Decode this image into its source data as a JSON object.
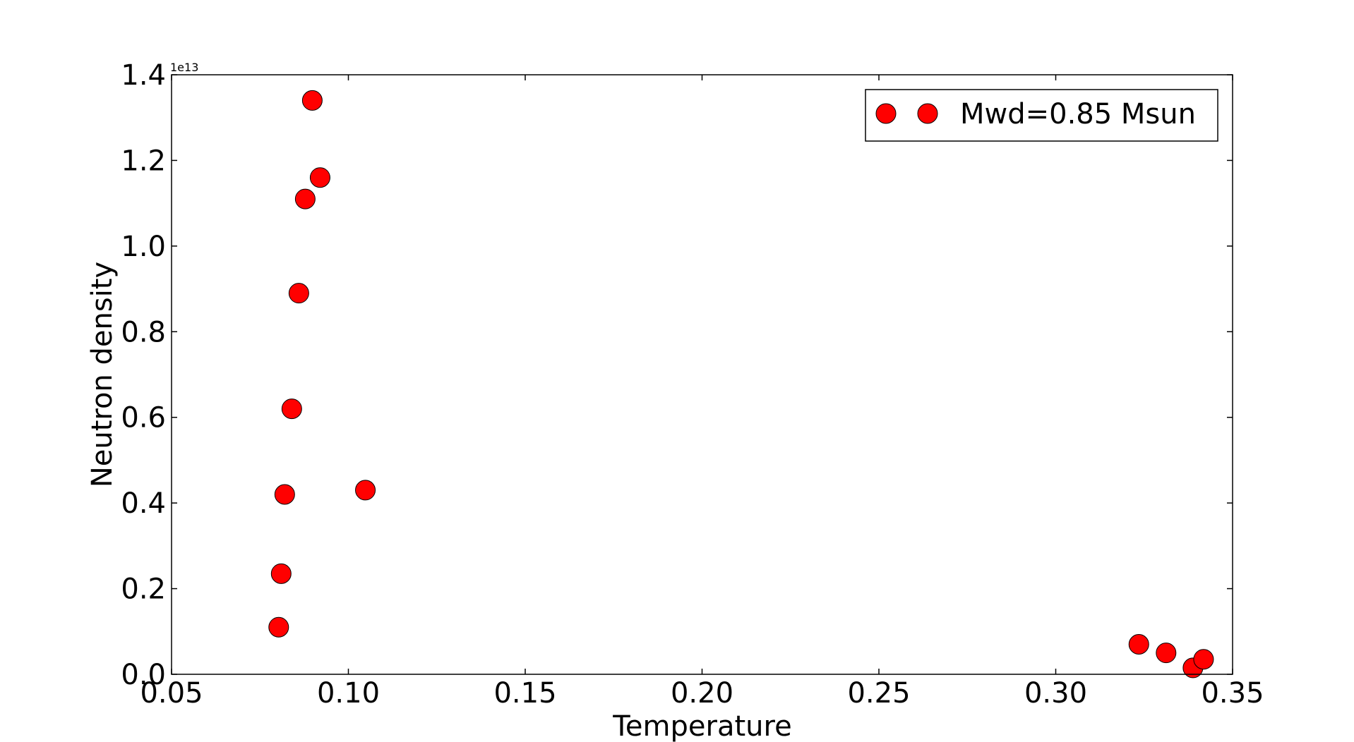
{
  "chart_data": {
    "type": "scatter",
    "xlabel": "Temperature",
    "ylabel": "Neutron density",
    "y_offset_label": "1e13",
    "y_scale_multiplier": 10000000000000.0,
    "xlim": [
      0.05,
      0.35
    ],
    "ylim": [
      0.0,
      1.4
    ],
    "x_ticks": [
      0.05,
      0.1,
      0.15,
      0.2,
      0.25,
      0.3,
      0.35
    ],
    "x_tick_labels": [
      "0.05",
      "0.10",
      "0.15",
      "0.20",
      "0.25",
      "0.30",
      "0.35"
    ],
    "y_ticks": [
      0.0,
      0.2,
      0.4,
      0.6,
      0.8,
      1.0,
      1.2,
      1.4
    ],
    "y_tick_labels": [
      "0.0",
      "0.2",
      "0.4",
      "0.6",
      "0.8",
      "1.0",
      "1.2",
      "1.4"
    ],
    "grid": false,
    "legend_position": "top-right",
    "series": [
      {
        "name": "Mwd=0.85 Msun",
        "color": "#ff0000",
        "marker": "circle",
        "points": [
          {
            "x": 0.0803,
            "y": 0.11
          },
          {
            "x": 0.081,
            "y": 0.235
          },
          {
            "x": 0.082,
            "y": 0.42
          },
          {
            "x": 0.084,
            "y": 0.62
          },
          {
            "x": 0.086,
            "y": 0.89
          },
          {
            "x": 0.0878,
            "y": 1.11
          },
          {
            "x": 0.0898,
            "y": 1.34
          },
          {
            "x": 0.092,
            "y": 1.16
          },
          {
            "x": 0.1048,
            "y": 0.43
          },
          {
            "x": 0.3235,
            "y": 0.07
          },
          {
            "x": 0.3312,
            "y": 0.05
          },
          {
            "x": 0.3388,
            "y": 0.015
          },
          {
            "x": 0.3418,
            "y": 0.035
          }
        ]
      }
    ]
  }
}
